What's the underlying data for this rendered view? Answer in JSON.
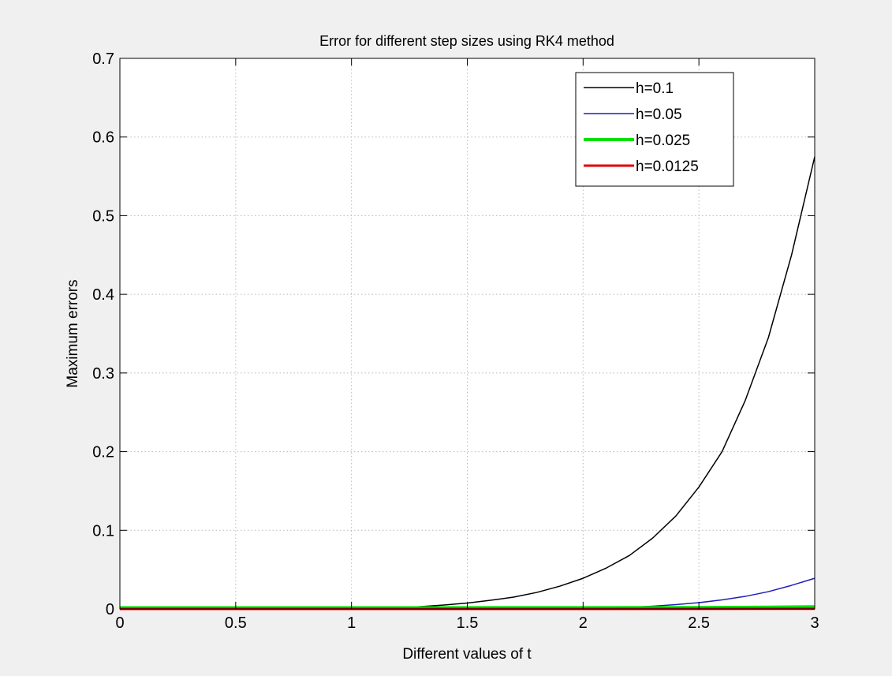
{
  "chart_data": {
    "type": "line",
    "title": "Error for different step sizes using RK4 method",
    "xlabel": "Different values of t",
    "ylabel": "Maximum errors",
    "xlim": [
      0,
      3
    ],
    "ylim": [
      0,
      0.7
    ],
    "grid": true,
    "legend_position": "top-right",
    "x_ticks": [
      0,
      0.5,
      1,
      1.5,
      2,
      2.5,
      3
    ],
    "x_tick_labels": [
      "0",
      "0.5",
      "1",
      "1.5",
      "2",
      "2.5",
      "3"
    ],
    "y_ticks": [
      0,
      0.1,
      0.2,
      0.3,
      0.4,
      0.5,
      0.6,
      0.7
    ],
    "y_tick_labels": [
      "0",
      "0.1",
      "0.2",
      "0.3",
      "0.4",
      "0.5",
      "0.6",
      "0.7"
    ],
    "series": [
      {
        "name": "h=0.1",
        "color": "#000000",
        "line_width": 1.5,
        "x": [
          0,
          0.1,
          0.2,
          0.3,
          0.4,
          0.5,
          0.6,
          0.7,
          0.8,
          0.9,
          1.0,
          1.1,
          1.2,
          1.3,
          1.4,
          1.5,
          1.6,
          1.7,
          1.8,
          1.9,
          2.0,
          2.1,
          2.2,
          2.3,
          2.4,
          2.5,
          2.6,
          2.7,
          2.8,
          2.9,
          3.0
        ],
        "y": [
          0,
          0,
          0,
          0,
          0,
          0,
          0,
          0,
          0,
          0,
          0.0002,
          0.0006,
          0.0015,
          0.003,
          0.005,
          0.0075,
          0.011,
          0.015,
          0.021,
          0.029,
          0.039,
          0.052,
          0.068,
          0.09,
          0.118,
          0.155,
          0.2,
          0.265,
          0.345,
          0.45,
          0.575
        ]
      },
      {
        "name": "h=0.05",
        "color": "#1f1fb8",
        "line_width": 1.5,
        "x": [
          0,
          0.5,
          1.0,
          1.5,
          2.0,
          2.1,
          2.2,
          2.3,
          2.4,
          2.5,
          2.6,
          2.7,
          2.8,
          2.9,
          3.0
        ],
        "y": [
          0,
          0,
          0,
          0,
          0.0005,
          0.001,
          0.002,
          0.0035,
          0.0055,
          0.008,
          0.0115,
          0.016,
          0.022,
          0.03,
          0.039
        ]
      },
      {
        "name": "h=0.025",
        "color": "#00e000",
        "line_width": 4,
        "x": [
          0,
          1.0,
          2.0,
          2.5,
          2.8,
          3.0
        ],
        "y": [
          0.0015,
          0.0015,
          0.0016,
          0.0018,
          0.0022,
          0.0028
        ]
      },
      {
        "name": "h=0.0125",
        "color": "#e00000",
        "line_width": 3,
        "x": [
          0,
          1.0,
          2.0,
          3.0
        ],
        "y": [
          0,
          0,
          0,
          0.0002
        ]
      }
    ]
  }
}
